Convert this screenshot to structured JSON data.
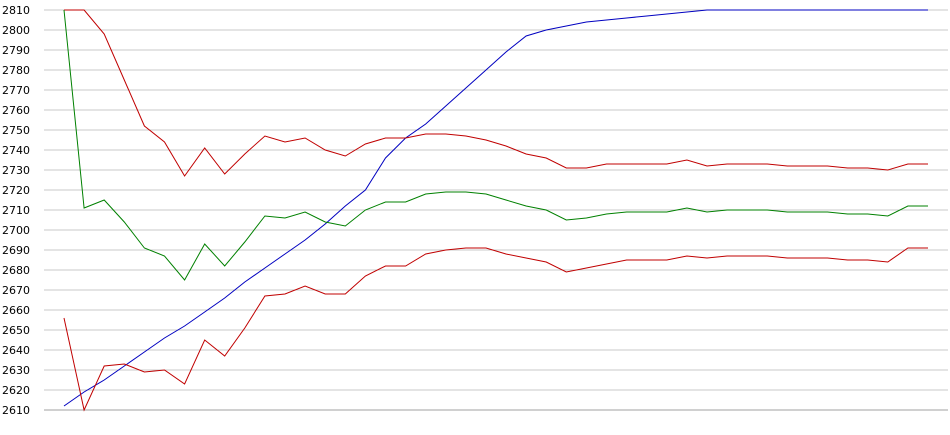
{
  "chart_data": {
    "type": "line",
    "title": "",
    "xlabel": "",
    "ylabel": "",
    "ylim": [
      2610,
      2810
    ],
    "yticks": [
      2610,
      2620,
      2630,
      2640,
      2650,
      2660,
      2670,
      2680,
      2690,
      2700,
      2710,
      2720,
      2730,
      2740,
      2750,
      2760,
      2770,
      2780,
      2790,
      2800,
      2810
    ],
    "grid": true,
    "legend": "none",
    "x": [
      0,
      1,
      2,
      3,
      4,
      5,
      6,
      7,
      8,
      9,
      10,
      11,
      12,
      13,
      14,
      15,
      16,
      17,
      18,
      19,
      20,
      21,
      22,
      23,
      24,
      25,
      26,
      27,
      28,
      29,
      30,
      31,
      32,
      33,
      34,
      35,
      36,
      37,
      38,
      39,
      40,
      41,
      42,
      43
    ],
    "series": [
      {
        "color": "#0000c0",
        "values": [
          2612,
          2619,
          2625,
          2632,
          2639,
          2646,
          2652,
          2659,
          2666,
          2674,
          2681,
          2688,
          2695,
          2703,
          2712,
          2720,
          2736,
          2746,
          2753,
          2762,
          2771,
          2780,
          2789,
          2797,
          2800,
          2802,
          2804,
          2805,
          2806,
          2807,
          2808,
          2809,
          2810,
          2810,
          2810,
          2810,
          2810,
          2810,
          2810,
          2810,
          2810,
          2810,
          2810,
          2810
        ]
      },
      {
        "color": "#c00000",
        "values": [
          2810,
          2810,
          2798,
          2775,
          2752,
          2744,
          2727,
          2741,
          2728,
          2738,
          2747,
          2744,
          2746,
          2740,
          2737,
          2743,
          2746,
          2746,
          2748,
          2748,
          2747,
          2745,
          2742,
          2738,
          2736,
          2731,
          2731,
          2733,
          2733,
          2733,
          2733,
          2735,
          2732,
          2733,
          2733,
          2733,
          2732,
          2732,
          2732,
          2731,
          2731,
          2730,
          2733,
          2733
        ]
      },
      {
        "color": "#008000",
        "values": [
          2810,
          2711,
          2715,
          2704,
          2691,
          2687,
          2675,
          2693,
          2682,
          2694,
          2707,
          2706,
          2709,
          2704,
          2702,
          2710,
          2714,
          2714,
          2718,
          2719,
          2719,
          2718,
          2715,
          2712,
          2710,
          2705,
          2706,
          2708,
          2709,
          2709,
          2709,
          2711,
          2709,
          2710,
          2710,
          2710,
          2709,
          2709,
          2709,
          2708,
          2708,
          2707,
          2712,
          2712
        ]
      },
      {
        "color": "#c00000",
        "values": [
          2656,
          2610,
          2632,
          2633,
          2629,
          2630,
          2623,
          2645,
          2637,
          2651,
          2667,
          2668,
          2672,
          2668,
          2668,
          2677,
          2682,
          2682,
          2688,
          2690,
          2691,
          2691,
          2688,
          2686,
          2684,
          2679,
          2681,
          2683,
          2685,
          2685,
          2685,
          2687,
          2686,
          2687,
          2687,
          2687,
          2686,
          2686,
          2686,
          2685,
          2685,
          2684,
          2691,
          2691
        ]
      }
    ]
  }
}
